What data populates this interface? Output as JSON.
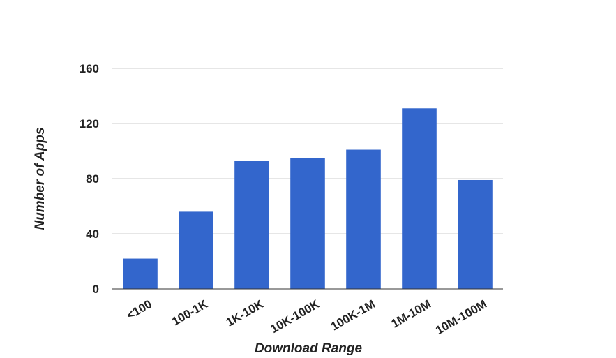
{
  "chart_data": {
    "type": "bar",
    "title": "",
    "xlabel": "Download Range",
    "ylabel": "Number of Apps",
    "categories": [
      "<100",
      "100-1K",
      "1K-10K",
      "10K-100K",
      "100K-1M",
      "1M-10M",
      "10M-100M"
    ],
    "values": [
      22,
      56,
      93,
      95,
      101,
      131,
      79
    ],
    "ylim": [
      0,
      160
    ],
    "yticks": [
      "0",
      "40",
      "80",
      "120",
      "160"
    ],
    "grid": true,
    "legend": "none",
    "bar_color": "#3366cc",
    "grid_color": "#cccccc",
    "axis_color": "#333333"
  }
}
